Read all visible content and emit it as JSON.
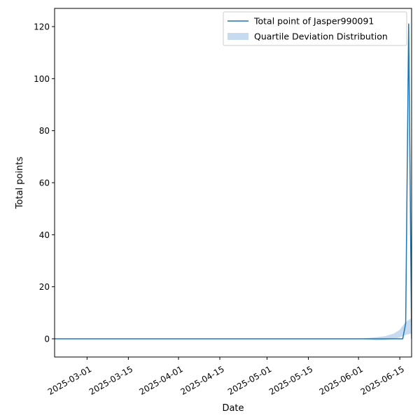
{
  "chart_data": {
    "type": "line",
    "xlabel": "Date",
    "ylabel": "Total points",
    "x_axis_type": "date",
    "xlim": [
      "2025-02-18",
      "2025-06-19"
    ],
    "ylim": [
      -7,
      127
    ],
    "x_ticks": [
      "2025-03-01",
      "2025-03-15",
      "2025-04-01",
      "2025-04-15",
      "2025-05-01",
      "2025-05-15",
      "2025-06-01",
      "2025-06-15"
    ],
    "y_ticks": [
      0,
      20,
      40,
      60,
      80,
      100,
      120
    ],
    "grid": false,
    "legend_position": "top-right",
    "colors": {
      "line": "#1f77b4",
      "band": "#c6dbef"
    },
    "series": [
      {
        "name": "Total point of Jasper990091",
        "kind": "line",
        "x": [
          "2025-02-18",
          "2025-03-15",
          "2025-04-15",
          "2025-05-15",
          "2025-06-01",
          "2025-06-08",
          "2025-06-15",
          "2025-06-16",
          "2025-06-17",
          "2025-06-18",
          "2025-06-19"
        ],
        "y": [
          0,
          0,
          0,
          0,
          0,
          0,
          0,
          0,
          6,
          121,
          0
        ]
      },
      {
        "name": "Quartile Deviation Distribution",
        "kind": "band",
        "x": [
          "2025-02-18",
          "2025-05-15",
          "2025-06-01",
          "2025-06-04",
          "2025-06-07",
          "2025-06-10",
          "2025-06-13",
          "2025-06-15",
          "2025-06-17",
          "2025-06-19"
        ],
        "lower": [
          0,
          0,
          0,
          -0.3,
          -0.6,
          -0.5,
          0,
          0.5,
          1.5,
          2
        ],
        "upper": [
          0,
          0,
          0,
          0.3,
          0.6,
          1,
          2,
          3.5,
          6.5,
          8
        ]
      }
    ]
  }
}
